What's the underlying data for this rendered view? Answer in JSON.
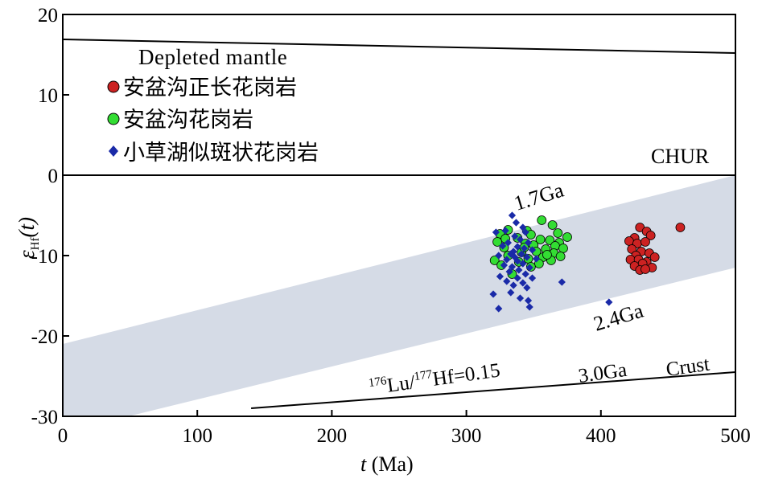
{
  "chart_data": {
    "type": "scatter",
    "title": "",
    "xlabel_var": "t",
    "xlabel_unit": "(Ma)",
    "ylabel_symbol": "ε",
    "ylabel_sub": "Hf",
    "ylabel_arg": "(t)",
    "xlim": [
      0,
      500
    ],
    "ylim": [
      -30,
      20
    ],
    "x_ticks": [
      0,
      100,
      200,
      300,
      400,
      500
    ],
    "x_tick_labels": [
      "0",
      "100",
      "200",
      "300",
      "400",
      "500"
    ],
    "y_ticks": [
      20,
      10,
      0,
      -10,
      -20,
      -30
    ],
    "y_tick_labels": [
      "20",
      "10",
      "0",
      "-10",
      "-20",
      "-30"
    ],
    "grid": false,
    "legend": {
      "position": "top-left",
      "title": "Depleted mantle",
      "entries": [
        {
          "name": "安盆沟正长花岗岩",
          "color": "#cc2222",
          "marker": "circle"
        },
        {
          "name": "安盆沟花岗岩",
          "color": "#33dd33",
          "marker": "circle"
        },
        {
          "name": "小草湖似斑状花岗岩",
          "color": "#1a2aa8",
          "marker": "diamond"
        }
      ]
    },
    "reference_lines": {
      "depleted_mantle": {
        "x": [
          0,
          500
        ],
        "y": [
          16.9,
          15.2
        ]
      },
      "chur": {
        "x": [
          0,
          500
        ],
        "y": [
          0,
          0
        ],
        "label": "CHUR"
      },
      "crust": {
        "x": [
          140,
          500
        ],
        "y": [
          -29.0,
          -24.5
        ],
        "label": "Crust"
      }
    },
    "shaded_band": {
      "color": "#d5dbe6",
      "top": {
        "x": [
          0,
          500
        ],
        "y": [
          -21.0,
          0
        ]
      },
      "bottom": {
        "x": [
          0,
          500
        ],
        "y": [
          -32.0,
          -11.5
        ]
      }
    },
    "annotations": {
      "t17": "1.7Ga",
      "t24": "2.4Ga",
      "crust_prefix_sup1": "176",
      "crust_mid1": "Lu/",
      "crust_prefix_sup2": "177",
      "crust_mid2": "Hf=0.15",
      "crust_age": "3.0Ga"
    },
    "series": [
      {
        "name": "安盆沟正长花岗岩",
        "marker": "circle",
        "color": "#cc2222",
        "points": [
          [
            429,
            -6.5
          ],
          [
            434,
            -7.0
          ],
          [
            437,
            -7.5
          ],
          [
            425,
            -7.8
          ],
          [
            421,
            -8.2
          ],
          [
            427,
            -8.5
          ],
          [
            433,
            -8.3
          ],
          [
            423,
            -9.2
          ],
          [
            430,
            -9.5
          ],
          [
            436,
            -9.7
          ],
          [
            426,
            -10.0
          ],
          [
            440,
            -10.2
          ],
          [
            422,
            -10.5
          ],
          [
            428,
            -10.5
          ],
          [
            434,
            -10.8
          ],
          [
            431,
            -11.0
          ],
          [
            425,
            -11.3
          ],
          [
            438,
            -11.5
          ],
          [
            429,
            -11.8
          ],
          [
            433,
            -11.7
          ],
          [
            459,
            -6.5
          ]
        ]
      },
      {
        "name": "安盆沟花岗岩",
        "marker": "circle",
        "color": "#33dd33",
        "points": [
          [
            356,
            -5.6
          ],
          [
            364,
            -6.2
          ],
          [
            331,
            -6.8
          ],
          [
            345,
            -6.9
          ],
          [
            325,
            -7.3
          ],
          [
            348,
            -7.4
          ],
          [
            368,
            -7.2
          ],
          [
            375,
            -7.7
          ],
          [
            329,
            -7.9
          ],
          [
            338,
            -7.8
          ],
          [
            355,
            -8.0
          ],
          [
            362,
            -8.1
          ],
          [
            369,
            -8.4
          ],
          [
            323,
            -8.3
          ],
          [
            344,
            -8.5
          ],
          [
            350,
            -8.7
          ],
          [
            366,
            -8.8
          ],
          [
            328,
            -9.0
          ],
          [
            359,
            -9.2
          ],
          [
            372,
            -9.1
          ],
          [
            352,
            -9.5
          ],
          [
            341,
            -9.6
          ],
          [
            365,
            -9.7
          ],
          [
            331,
            -10.0
          ],
          [
            357,
            -10.2
          ],
          [
            346,
            -10.4
          ],
          [
            370,
            -10.1
          ],
          [
            363,
            -10.6
          ],
          [
            321,
            -10.6
          ],
          [
            339,
            -10.8
          ],
          [
            354,
            -11.0
          ],
          [
            326,
            -11.2
          ],
          [
            348,
            -11.4
          ],
          [
            334,
            -12.3
          ],
          [
            360,
            -9.9
          ],
          [
            343,
            -9.0
          ]
        ]
      },
      {
        "name": "小草湖似斑状花岗岩",
        "marker": "diamond",
        "color": "#1a2aa8",
        "points": [
          [
            334,
            -5.0
          ],
          [
            337,
            -5.9
          ],
          [
            342,
            -6.5
          ],
          [
            329,
            -6.9
          ],
          [
            344,
            -7.1
          ],
          [
            322,
            -7.1
          ],
          [
            336,
            -7.6
          ],
          [
            340,
            -8.0
          ],
          [
            331,
            -8.4
          ],
          [
            346,
            -8.4
          ],
          [
            327,
            -8.8
          ],
          [
            338,
            -8.9
          ],
          [
            343,
            -9.1
          ],
          [
            349,
            -9.3
          ],
          [
            335,
            -9.5
          ],
          [
            333,
            -9.8
          ],
          [
            341,
            -9.8
          ],
          [
            324,
            -10.0
          ],
          [
            336,
            -10.2
          ],
          [
            345,
            -10.2
          ],
          [
            330,
            -10.5
          ],
          [
            338,
            -10.7
          ],
          [
            352,
            -10.4
          ],
          [
            342,
            -11.0
          ],
          [
            328,
            -11.2
          ],
          [
            334,
            -11.4
          ],
          [
            347,
            -11.5
          ],
          [
            339,
            -11.8
          ],
          [
            332,
            -12.0
          ],
          [
            344,
            -12.3
          ],
          [
            325,
            -12.6
          ],
          [
            338,
            -12.8
          ],
          [
            349,
            -12.8
          ],
          [
            330,
            -13.2
          ],
          [
            342,
            -13.4
          ],
          [
            335,
            -13.7
          ],
          [
            345,
            -14.0
          ],
          [
            320,
            -14.8
          ],
          [
            333,
            -14.6
          ],
          [
            340,
            -15.3
          ],
          [
            346,
            -15.6
          ],
          [
            324,
            -16.6
          ],
          [
            347,
            -16.4
          ],
          [
            371,
            -13.3
          ],
          [
            406,
            -15.8
          ]
        ]
      }
    ]
  }
}
